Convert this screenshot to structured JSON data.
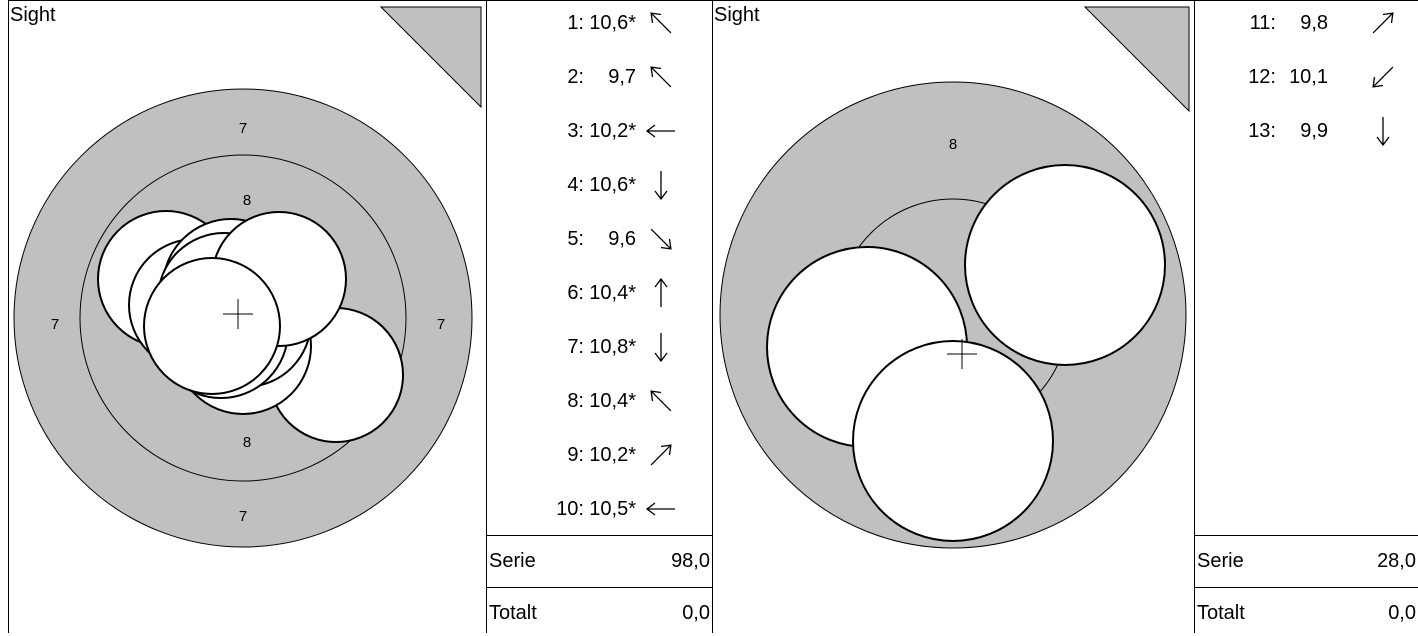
{
  "panels": [
    {
      "sight_label": "Sight",
      "ring_numbers": [
        "7",
        "7",
        "7",
        "7",
        "8",
        "8"
      ],
      "shots": [
        {
          "num": "1:",
          "score": "10,6*",
          "dir": "up-left"
        },
        {
          "num": "2:",
          "score": " 9,7",
          "dir": "up-left"
        },
        {
          "num": "3:",
          "score": "10,2*",
          "dir": "left"
        },
        {
          "num": "4:",
          "score": "10,6*",
          "dir": "down"
        },
        {
          "num": "5:",
          "score": " 9,6",
          "dir": "down-right"
        },
        {
          "num": "6:",
          "score": "10,4*",
          "dir": "up"
        },
        {
          "num": "7:",
          "score": "10,8*",
          "dir": "down"
        },
        {
          "num": "8:",
          "score": "10,4*",
          "dir": "up-left"
        },
        {
          "num": "9:",
          "score": "10,2*",
          "dir": "up-right"
        },
        {
          "num": "10:",
          "score": "10,5*",
          "dir": "left"
        }
      ],
      "series_label": "Serie",
      "series_value": "98,0",
      "total_label": "Totalt",
      "total_value": "0,0"
    },
    {
      "sight_label": "Sight",
      "ring_numbers": [
        "8"
      ],
      "shots": [
        {
          "num": "11:",
          "score": " 9,8",
          "dir": "up-right"
        },
        {
          "num": "12:",
          "score": "10,1",
          "dir": "down-left"
        },
        {
          "num": "13:",
          "score": " 9,9",
          "dir": "down"
        }
      ],
      "series_label": "Serie",
      "series_value": "28,0",
      "total_label": "Totalt",
      "total_value": "0,0"
    }
  ]
}
